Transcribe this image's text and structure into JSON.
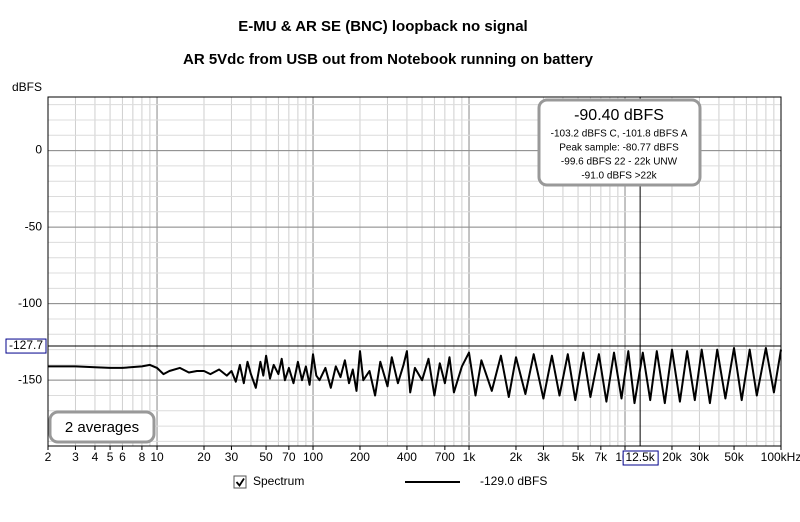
{
  "chart_data": {
    "type": "line",
    "title": "E-MU & AR SE (BNC) loopback no signal",
    "subtitle": "AR 5Vdc from  USB out from Notebook running on battery",
    "ylabel": "dBFS",
    "log_x": true,
    "grid": true,
    "xlim": [
      2,
      100000
    ],
    "ylim": [
      -193,
      35
    ],
    "yticks": [
      0,
      -50,
      -100,
      -150
    ],
    "xticks": [
      2,
      3,
      4,
      5,
      6,
      8,
      10,
      20,
      30,
      50,
      70,
      100,
      200,
      400,
      700,
      {
        "value": 1000,
        "label": "1k"
      },
      {
        "value": 2000,
        "label": "2k"
      },
      {
        "value": 3000,
        "label": "3k"
      },
      {
        "value": 5000,
        "label": "5k"
      },
      {
        "value": 7000,
        "label": "7k"
      },
      {
        "value": 10000,
        "label": "10k"
      },
      {
        "value": 20000,
        "label": "20k"
      },
      {
        "value": 30000,
        "label": "30k"
      },
      {
        "value": 50000,
        "label": "50k"
      },
      {
        "value": 100000,
        "label": "100kHz"
      }
    ],
    "cursor": {
      "x": {
        "value": 12500,
        "label": "12.5k"
      },
      "y": -127.7
    },
    "annotation": [
      "-90.40 dBFS",
      "-103.2 dBFS C, -101.8 dBFS A",
      "Peak sample: -80.77 dBFS",
      "-99.6 dBFS 22 - 22k UNW",
      "-91.0 dBFS >22k"
    ],
    "averages": "2 averages",
    "x": [
      2,
      3,
      4,
      5,
      6,
      8,
      9,
      10,
      11,
      12,
      14,
      16,
      18,
      20,
      22,
      25,
      28,
      30,
      32,
      34,
      36,
      38,
      40,
      43,
      46,
      48,
      50,
      53,
      56,
      60,
      63,
      66,
      70,
      75,
      80,
      85,
      90,
      95,
      100,
      105,
      110,
      120,
      130,
      140,
      150,
      160,
      170,
      180,
      190,
      200,
      210,
      230,
      250,
      270,
      300,
      320,
      350,
      380,
      400,
      420,
      450,
      500,
      550,
      600,
      650,
      700,
      750,
      800,
      900,
      1000,
      1100,
      1200,
      1400,
      1600,
      1800,
      2000,
      2300,
      2600,
      3000,
      3400,
      3800,
      4300,
      4800,
      5400,
      6000,
      6800,
      7600,
      8500,
      9500,
      10500,
      11500,
      13000,
      14500,
      16000,
      18000,
      20000,
      22500,
      25000,
      28000,
      31000,
      35000,
      39000,
      44000,
      50000,
      56000,
      63000,
      70000,
      80000,
      90000,
      100000
    ],
    "series": [
      {
        "name": "Spectrum",
        "color": "#000000",
        "legend_value": "-129.0 dBFS",
        "values": [
          -141,
          -141,
          -141.5,
          -142,
          -142,
          -141,
          -140,
          -142,
          -146,
          -144,
          -142,
          -145,
          -144,
          -144,
          -146,
          -143,
          -147,
          -144,
          -151,
          -140,
          -152,
          -138,
          -146,
          -155,
          -138,
          -147,
          -134,
          -149,
          -140,
          -146,
          -136,
          -150,
          -142,
          -152,
          -138,
          -150,
          -141,
          -153,
          -133,
          -147,
          -150,
          -142,
          -155,
          -141,
          -148,
          -137,
          -152,
          -143,
          -157,
          -131,
          -150,
          -144,
          -160,
          -138,
          -154,
          -135,
          -152,
          -140,
          -131,
          -158,
          -142,
          -150,
          -136,
          -160,
          -139,
          -152,
          -135,
          -158,
          -141,
          -132,
          -160,
          -137,
          -157,
          -134,
          -161,
          -135,
          -159,
          -133,
          -162,
          -134,
          -160,
          -133,
          -163,
          -132,
          -161,
          -133,
          -164,
          -132,
          -162,
          -131,
          -165,
          -132,
          -163,
          -131,
          -165,
          -130,
          -164,
          -131,
          -163,
          -130,
          -165,
          -130,
          -162,
          -129,
          -163,
          -130,
          -160,
          -129,
          -158,
          -130
        ]
      }
    ]
  }
}
